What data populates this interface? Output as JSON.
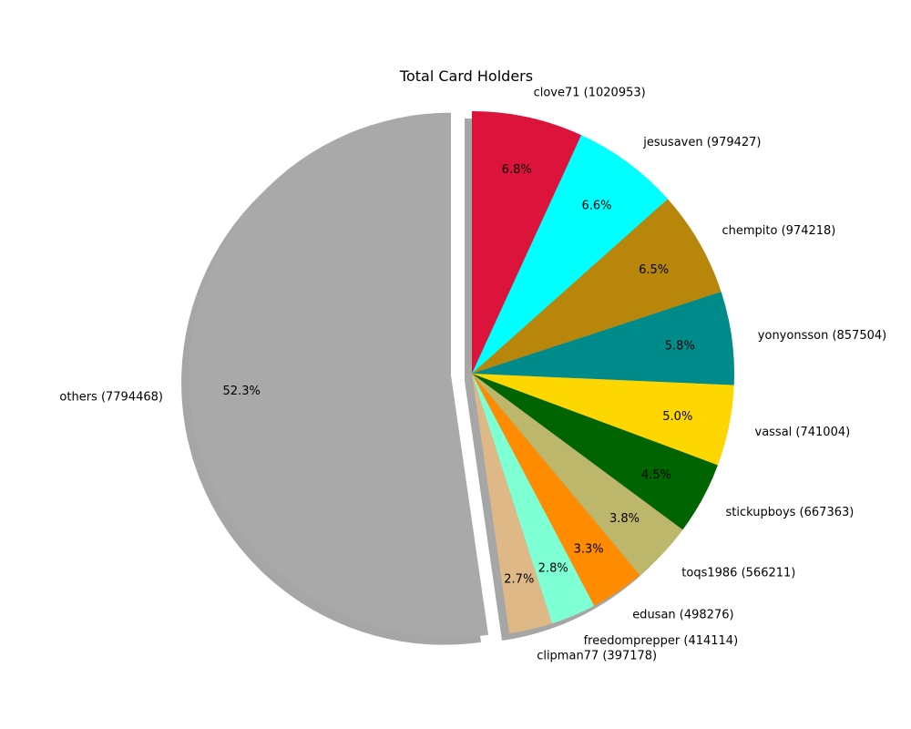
{
  "chart_data": {
    "type": "pie",
    "title": "Total Card Holders",
    "slices": [
      {
        "label": "clove71",
        "value": 1020953,
        "percent_label": "6.8%",
        "color": "#DC143C"
      },
      {
        "label": "jesusaven",
        "value": 979427,
        "percent_label": "6.6%",
        "color": "#00FFFF"
      },
      {
        "label": "chempito",
        "value": 974218,
        "percent_label": "6.5%",
        "color": "#B8860B"
      },
      {
        "label": "yonyonsson",
        "value": 857504,
        "percent_label": "5.8%",
        "color": "#008B8B"
      },
      {
        "label": "vassal",
        "value": 741004,
        "percent_label": "5.0%",
        "color": "#FFD700"
      },
      {
        "label": "stickupboys",
        "value": 667363,
        "percent_label": "4.5%",
        "color": "#006400"
      },
      {
        "label": "toqs1986",
        "value": 566211,
        "percent_label": "3.8%",
        "color": "#BDB76B"
      },
      {
        "label": "edusan",
        "value": 498276,
        "percent_label": "3.3%",
        "color": "#FF8C00"
      },
      {
        "label": "freedomprepper",
        "value": 414114,
        "percent_label": "2.8%",
        "color": "#7FFFD4"
      },
      {
        "label": "clipman77",
        "value": 397178,
        "percent_label": "2.7%",
        "color": "#DEB887"
      },
      {
        "label": "others",
        "value": 7794468,
        "percent_label": "52.3%",
        "color": "#A9A9A9",
        "exploded": true
      }
    ],
    "start_position": "top",
    "direction": "clockwise",
    "shadow": true
  }
}
